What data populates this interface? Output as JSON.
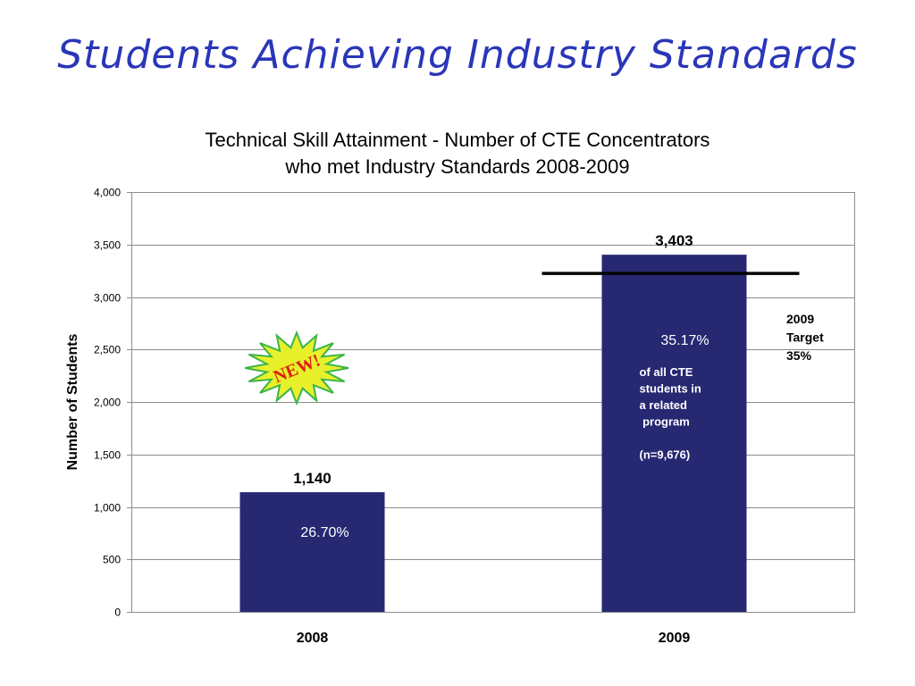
{
  "slide": {
    "title": "Students Achieving Industry Standards"
  },
  "chart_data": {
    "type": "bar",
    "title_line1": "Technical Skill Attainment - Number of CTE Concentrators",
    "title_line2": "who met Industry Standards 2008-2009",
    "ylabel": "Number of Students",
    "xlabel": "",
    "ylim": [
      0,
      4000
    ],
    "yticks": [
      0,
      500,
      1000,
      1500,
      2000,
      2500,
      3000,
      3500,
      4000
    ],
    "ytick_labels": [
      "0",
      "500",
      "1,000",
      "1,500",
      "2,000",
      "2,500",
      "3,000",
      "3,500",
      "4,000"
    ],
    "grid": true,
    "categories": [
      "2008",
      "2009"
    ],
    "values": [
      1140,
      3403
    ],
    "value_labels": [
      "1,140",
      "3,403"
    ],
    "percent_labels": [
      "26.70%",
      "35.17%"
    ],
    "bar_color": "#262872",
    "note_lines": [
      "of all CTE",
      "students in",
      "a related",
      " program",
      "",
      "(n=9,676)"
    ],
    "target": {
      "value": 3225,
      "label_lines": [
        "2009",
        "Target",
        "35%"
      ]
    },
    "badge": {
      "text": "NEW!",
      "fill": "#e8f02a",
      "stroke": "#3bb54a"
    }
  }
}
